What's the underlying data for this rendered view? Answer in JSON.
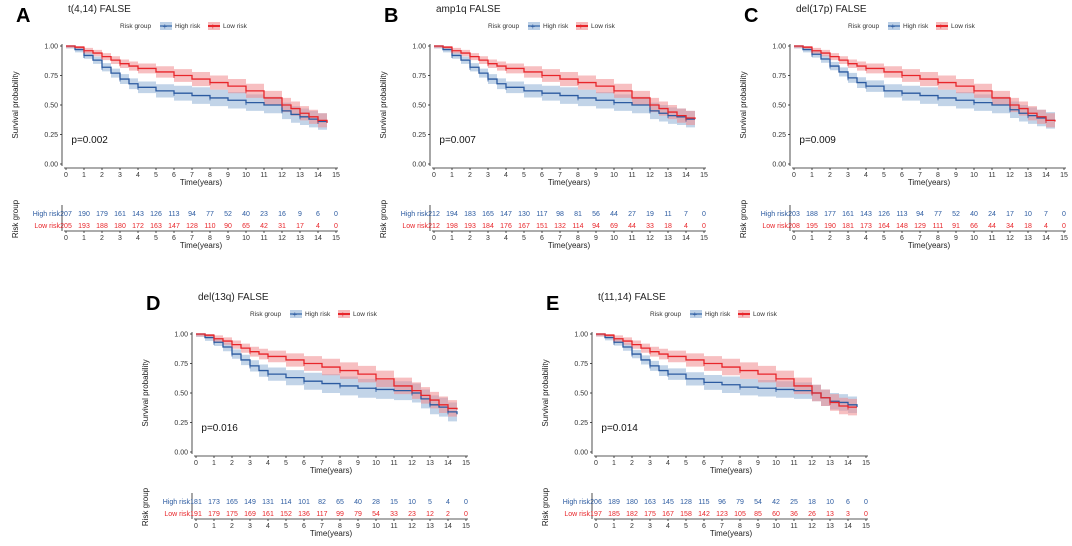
{
  "colors": {
    "high": "#2b5aa0",
    "low": "#e8252a",
    "high_band": "#8fb0d6",
    "low_band": "#f08a8e",
    "axis": "#222222",
    "text": "#333333"
  },
  "common": {
    "legend_title": "Risk group",
    "legend_high": "High risk",
    "legend_low": "Low risk",
    "ylabel": "Survival probability",
    "xlabel": "Time(years)",
    "table_ylabel": "Risk group",
    "row_high": "High risk",
    "row_low": "Low risk",
    "x_ticks": [
      "0",
      "1",
      "2",
      "3",
      "4",
      "5",
      "6",
      "7",
      "8",
      "9",
      "10",
      "11",
      "12",
      "13",
      "14",
      "15"
    ],
    "y_ticks": [
      "0.00",
      "0.25",
      "0.50",
      "0.75",
      "1.00"
    ]
  },
  "chart_data": [
    {
      "type": "line",
      "panel_label": "A",
      "title": "t(4,14) FALSE",
      "pvalue": "p=0.002",
      "xlim": [
        0,
        15
      ],
      "ylim": [
        0,
        1
      ],
      "series": [
        {
          "name": "High risk",
          "x": [
            0,
            0.5,
            1,
            1.5,
            2,
            2.5,
            3,
            3.5,
            4,
            5,
            6,
            7,
            8,
            9,
            10,
            11,
            12,
            12.5,
            13,
            13.5,
            14,
            14.5
          ],
          "y": [
            1,
            0.97,
            0.92,
            0.88,
            0.82,
            0.77,
            0.72,
            0.68,
            0.65,
            0.62,
            0.6,
            0.58,
            0.56,
            0.54,
            0.52,
            0.5,
            0.45,
            0.42,
            0.4,
            0.38,
            0.36,
            0.35
          ],
          "band": 0.07
        },
        {
          "name": "Low risk",
          "x": [
            0,
            0.5,
            1,
            1.5,
            2,
            2.5,
            3,
            3.5,
            4,
            5,
            6,
            7,
            8,
            9,
            10,
            11,
            12,
            12.5,
            13,
            13.5,
            14,
            14.5
          ],
          "y": [
            1,
            0.99,
            0.96,
            0.94,
            0.91,
            0.88,
            0.85,
            0.83,
            0.81,
            0.78,
            0.75,
            0.72,
            0.69,
            0.66,
            0.62,
            0.56,
            0.5,
            0.47,
            0.43,
            0.4,
            0.37,
            0.35
          ],
          "band": 0.06
        }
      ],
      "risk_table": {
        "high": [
          "207",
          "190",
          "179",
          "161",
          "143",
          "126",
          "113",
          "94",
          "77",
          "52",
          "40",
          "23",
          "16",
          "9",
          "6",
          "0"
        ],
        "low": [
          "205",
          "193",
          "188",
          "180",
          "172",
          "163",
          "147",
          "128",
          "110",
          "90",
          "65",
          "42",
          "31",
          "17",
          "4",
          "0"
        ]
      }
    },
    {
      "type": "line",
      "panel_label": "B",
      "title": "amp1q FALSE",
      "pvalue": "p=0.007",
      "xlim": [
        0,
        15
      ],
      "ylim": [
        0,
        1
      ],
      "series": [
        {
          "name": "High risk",
          "x": [
            0,
            0.5,
            1,
            1.5,
            2,
            2.5,
            3,
            3.5,
            4,
            5,
            6,
            7,
            8,
            9,
            10,
            11,
            12,
            12.5,
            13,
            13.5,
            14,
            14.5
          ],
          "y": [
            1,
            0.97,
            0.92,
            0.88,
            0.82,
            0.77,
            0.72,
            0.68,
            0.65,
            0.62,
            0.6,
            0.58,
            0.56,
            0.54,
            0.52,
            0.5,
            0.45,
            0.43,
            0.41,
            0.4,
            0.38,
            0.38
          ],
          "band": 0.07
        },
        {
          "name": "Low risk",
          "x": [
            0,
            0.5,
            1,
            1.5,
            2,
            2.5,
            3,
            3.5,
            4,
            5,
            6,
            7,
            8,
            9,
            10,
            11,
            12,
            12.5,
            13,
            13.5,
            14,
            14.5
          ],
          "y": [
            1,
            0.99,
            0.96,
            0.94,
            0.91,
            0.88,
            0.85,
            0.83,
            0.81,
            0.78,
            0.75,
            0.72,
            0.69,
            0.66,
            0.62,
            0.56,
            0.5,
            0.47,
            0.44,
            0.41,
            0.39,
            0.38
          ],
          "band": 0.06
        }
      ],
      "risk_table": {
        "high": [
          "212",
          "194",
          "183",
          "165",
          "147",
          "130",
          "117",
          "98",
          "81",
          "56",
          "44",
          "27",
          "19",
          "11",
          "7",
          "0"
        ],
        "low": [
          "212",
          "198",
          "193",
          "184",
          "176",
          "167",
          "151",
          "132",
          "114",
          "94",
          "69",
          "44",
          "33",
          "18",
          "4",
          "0"
        ]
      }
    },
    {
      "type": "line",
      "panel_label": "C",
      "title": "del(17p) FALSE",
      "pvalue": "p=0.009",
      "xlim": [
        0,
        15
      ],
      "ylim": [
        0,
        1
      ],
      "series": [
        {
          "name": "High risk",
          "x": [
            0,
            0.5,
            1,
            1.5,
            2,
            2.5,
            3,
            3.5,
            4,
            5,
            6,
            7,
            8,
            9,
            10,
            11,
            12,
            12.5,
            13,
            13.5,
            14,
            14.5
          ],
          "y": [
            1,
            0.97,
            0.93,
            0.89,
            0.83,
            0.78,
            0.73,
            0.69,
            0.66,
            0.62,
            0.6,
            0.58,
            0.56,
            0.54,
            0.52,
            0.5,
            0.46,
            0.43,
            0.41,
            0.39,
            0.37,
            0.37
          ],
          "band": 0.07
        },
        {
          "name": "Low risk",
          "x": [
            0,
            0.5,
            1,
            1.5,
            2,
            2.5,
            3,
            3.5,
            4,
            5,
            6,
            7,
            8,
            9,
            10,
            11,
            12,
            12.5,
            13,
            13.5,
            14,
            14.5
          ],
          "y": [
            1,
            0.99,
            0.96,
            0.94,
            0.91,
            0.88,
            0.85,
            0.83,
            0.81,
            0.78,
            0.75,
            0.72,
            0.69,
            0.66,
            0.62,
            0.56,
            0.5,
            0.47,
            0.43,
            0.4,
            0.37,
            0.36
          ],
          "band": 0.06
        }
      ],
      "risk_table": {
        "high": [
          "203",
          "188",
          "177",
          "161",
          "143",
          "126",
          "113",
          "94",
          "77",
          "52",
          "40",
          "24",
          "17",
          "10",
          "7",
          "0"
        ],
        "low": [
          "208",
          "195",
          "190",
          "181",
          "173",
          "164",
          "148",
          "129",
          "111",
          "91",
          "66",
          "44",
          "34",
          "18",
          "4",
          "0"
        ]
      }
    },
    {
      "type": "line",
      "panel_label": "D",
      "title": "del(13q) FALSE",
      "pvalue": "p=0.016",
      "xlim": [
        0,
        15
      ],
      "ylim": [
        0,
        1
      ],
      "series": [
        {
          "name": "High risk",
          "x": [
            0,
            0.5,
            1,
            1.5,
            2,
            2.5,
            3,
            3.5,
            4,
            5,
            6,
            7,
            8,
            9,
            10,
            11,
            12,
            12.5,
            13,
            13.5,
            14,
            14.5
          ],
          "y": [
            1,
            0.97,
            0.93,
            0.89,
            0.83,
            0.78,
            0.73,
            0.69,
            0.66,
            0.63,
            0.6,
            0.58,
            0.56,
            0.54,
            0.53,
            0.52,
            0.5,
            0.45,
            0.4,
            0.38,
            0.34,
            0.32
          ],
          "band": 0.08
        },
        {
          "name": "Low risk",
          "x": [
            0,
            0.5,
            1,
            1.5,
            2,
            2.5,
            3,
            3.5,
            4,
            5,
            6,
            7,
            8,
            9,
            10,
            11,
            12,
            12.5,
            13,
            13.5,
            14,
            14.5
          ],
          "y": [
            1,
            0.99,
            0.96,
            0.94,
            0.91,
            0.88,
            0.85,
            0.83,
            0.81,
            0.78,
            0.75,
            0.72,
            0.69,
            0.66,
            0.62,
            0.56,
            0.52,
            0.48,
            0.44,
            0.4,
            0.37,
            0.36
          ],
          "band": 0.07
        }
      ],
      "risk_table": {
        "high": [
          "181",
          "173",
          "165",
          "149",
          "131",
          "114",
          "101",
          "82",
          "65",
          "40",
          "28",
          "15",
          "10",
          "5",
          "4",
          "0"
        ],
        "low": [
          "191",
          "179",
          "175",
          "169",
          "161",
          "152",
          "136",
          "117",
          "99",
          "79",
          "54",
          "33",
          "23",
          "12",
          "2",
          "0"
        ]
      }
    },
    {
      "type": "line",
      "panel_label": "E",
      "title": "t(11,14) FALSE",
      "pvalue": "p=0.014",
      "xlim": [
        0,
        15
      ],
      "ylim": [
        0,
        1
      ],
      "series": [
        {
          "name": "High risk",
          "x": [
            0,
            0.5,
            1,
            1.5,
            2,
            2.5,
            3,
            3.5,
            4,
            5,
            6,
            7,
            8,
            9,
            10,
            11,
            12,
            12.5,
            13,
            13.5,
            14,
            14.5
          ],
          "y": [
            1,
            0.97,
            0.93,
            0.89,
            0.83,
            0.78,
            0.73,
            0.69,
            0.66,
            0.62,
            0.59,
            0.57,
            0.55,
            0.54,
            0.53,
            0.52,
            0.5,
            0.46,
            0.43,
            0.42,
            0.4,
            0.38
          ],
          "band": 0.07
        },
        {
          "name": "Low risk",
          "x": [
            0,
            0.5,
            1,
            1.5,
            2,
            2.5,
            3,
            3.5,
            4,
            5,
            6,
            7,
            8,
            9,
            10,
            11,
            12,
            12.5,
            13,
            13.5,
            14,
            14.5
          ],
          "y": [
            1,
            0.99,
            0.96,
            0.94,
            0.91,
            0.88,
            0.85,
            0.83,
            0.81,
            0.78,
            0.75,
            0.72,
            0.69,
            0.66,
            0.62,
            0.56,
            0.5,
            0.46,
            0.42,
            0.39,
            0.38,
            0.38
          ],
          "band": 0.07
        }
      ],
      "risk_table": {
        "high": [
          "206",
          "189",
          "180",
          "163",
          "145",
          "128",
          "115",
          "96",
          "79",
          "54",
          "42",
          "25",
          "18",
          "10",
          "6",
          "0"
        ],
        "low": [
          "197",
          "185",
          "182",
          "175",
          "167",
          "158",
          "142",
          "123",
          "105",
          "85",
          "60",
          "36",
          "26",
          "13",
          "3",
          "0"
        ]
      }
    }
  ]
}
